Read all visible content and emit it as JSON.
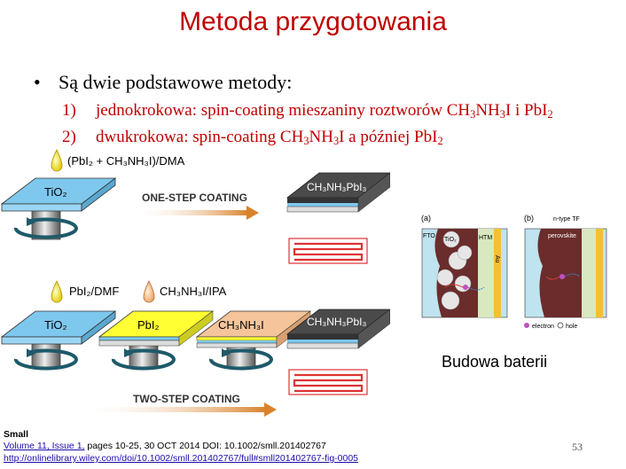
{
  "slide": {
    "title": "Metoda przygotowania",
    "bullet": "Są dwie podstawowe metody:",
    "items": [
      {
        "num": "1)",
        "text_a": "jednokrokowa: spin-coating mieszaniny roztworów CH",
        "s1": "3",
        "t2": "NH",
        "s2": "3",
        "t3": "I i PbI",
        "s3": "2",
        "t4": ""
      },
      {
        "num": "2)",
        "text_a": "dwukrokowa: spin-coating CH",
        "s1": "3",
        "t2": "NH",
        "s2": "3",
        "t3": "I a później PbI",
        "s3": "2",
        "t4": ""
      }
    ],
    "page_number": "53",
    "battery_caption": "Budowa baterii"
  },
  "reference": {
    "journal": "Small",
    "volume_link": "Volume 11, Issue 1,",
    "volume_rest": " pages 10-25, 30 OCT 2014 DOI: 10.1002/smll.201402767",
    "url": "http://onlinelibrary.wiley.com/doi/10.1002/smll.201402767/full#smll201402767-fig-0005"
  },
  "diagram": {
    "one_step_solution": "(PbI₂ + CH₃NH₃I)/DMA",
    "one_step_label": "ONE-STEP COATING",
    "two_step_label": "TWO-STEP COATING",
    "pbi2_solution": "PbI₂/DMF",
    "mai_solution": "CH₃NH₃I/IPA",
    "tio2": "TiO₂",
    "pbi2": "PbI₂",
    "mai": "CH₃NH₃I",
    "perovskite": "CH₃NH₃PbI₃",
    "panel_a": "(a)",
    "panel_b": "(b)",
    "fto": "FTO",
    "htm": "HTM",
    "au": "Au",
    "n_type": "n-type TF",
    "perovskite_word": "perovskite",
    "legend_electron": "electron",
    "legend_hole": "hole"
  },
  "colors": {
    "title": "#c00000",
    "tio2": "#7ec8ee",
    "pbi2": "#ffff33",
    "mai": "#f5c49a",
    "perovskite": "#4a4a4a",
    "arrow": "#d9822b",
    "perovskite_cell": "#6b2c2c"
  }
}
